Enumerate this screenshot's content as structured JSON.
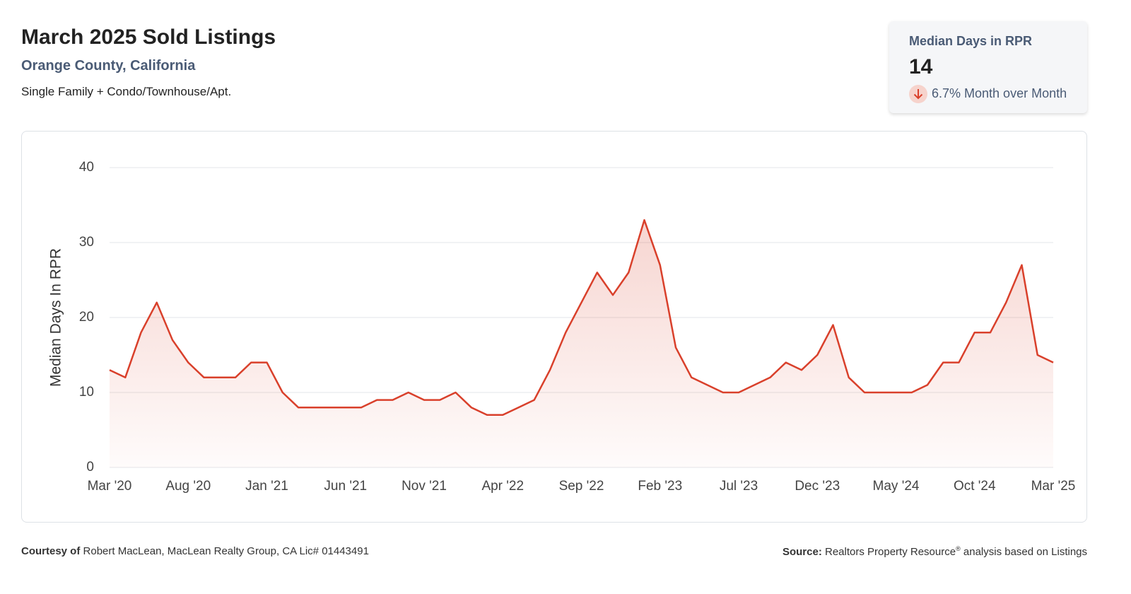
{
  "header": {
    "title": "March 2025 Sold Listings",
    "subtitle": "Orange County, California",
    "description": "Single Family + Condo/Townhouse/Apt."
  },
  "kpi": {
    "label": "Median Days in RPR",
    "value": 14,
    "change": "6.7% Month over Month"
  },
  "chart_data": {
    "type": "line",
    "ylabel": "Median Days In RPR",
    "color": "#d9402b",
    "categories": [
      "Mar '20",
      null,
      null,
      null,
      null,
      "Aug '20",
      null,
      null,
      null,
      null,
      "Jan '21",
      null,
      null,
      null,
      null,
      "Jun '21",
      null,
      null,
      null,
      null,
      "Nov '21",
      null,
      null,
      null,
      null,
      "Apr '22",
      null,
      null,
      null,
      null,
      "Sep '22",
      null,
      null,
      null,
      null,
      "Feb '23",
      null,
      null,
      null,
      null,
      "Jul '23",
      null,
      null,
      null,
      null,
      "Dec '23",
      null,
      null,
      null,
      null,
      "May '24",
      null,
      null,
      null,
      null,
      "Oct '24",
      null,
      null,
      null,
      null,
      "Mar '25"
    ],
    "values": [
      13,
      12,
      18,
      22,
      17,
      14,
      12,
      12,
      12,
      14,
      14,
      10,
      8,
      8,
      8,
      8,
      8,
      9,
      9,
      10,
      9,
      9,
      10,
      8,
      7,
      7,
      8,
      9,
      13,
      18,
      22,
      26,
      23,
      26,
      33,
      27,
      16,
      12,
      11,
      10,
      10,
      11,
      12,
      14,
      13,
      15,
      19,
      12,
      10,
      10,
      10,
      10,
      11,
      14,
      14,
      18,
      18,
      22,
      27,
      15,
      14
    ],
    "ylim": [
      0,
      40
    ],
    "yticks": [
      0,
      10,
      20,
      30,
      40
    ],
    "grid": true
  },
  "footer": {
    "courtesy_label": "Courtesy of",
    "courtesy": "Robert MacLean, MacLean Realty Group, CA Lic# 01443491",
    "source_label": "Source:",
    "source": "Realtors Property Resource",
    "source_mark": "®",
    "source_rest": "analysis based on Listings"
  }
}
